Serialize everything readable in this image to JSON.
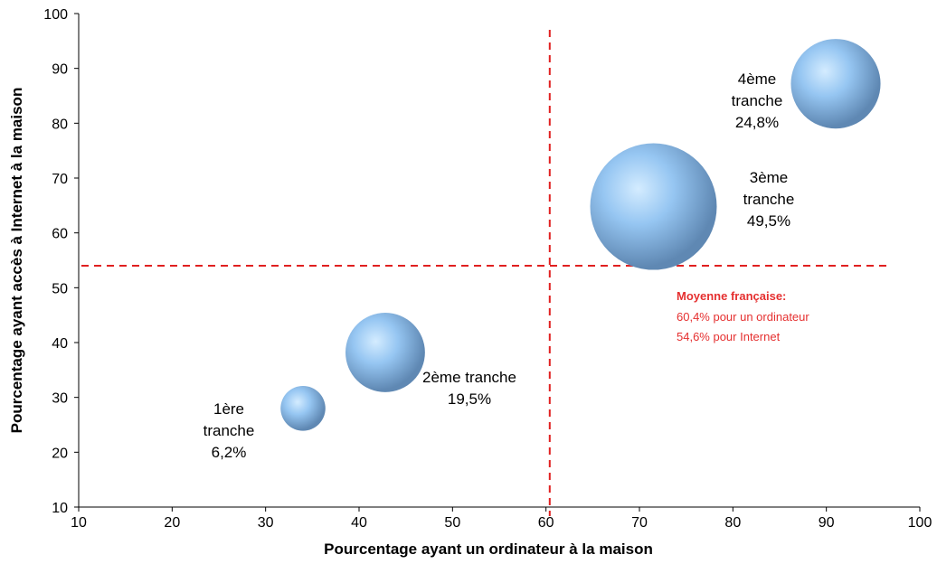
{
  "chart_data": {
    "type": "bubble",
    "xlabel": "Pourcentage ayant un ordinateur à la maison",
    "ylabel": "Pourcentage ayant accès à Internet à la maison",
    "xlim": [
      10,
      100
    ],
    "ylim": [
      10,
      100
    ],
    "xticks": [
      "10",
      "20",
      "30",
      "40",
      "50",
      "60",
      "70",
      "80",
      "90",
      "100"
    ],
    "yticks": [
      "10",
      "20",
      "30",
      "40",
      "50",
      "60",
      "70",
      "80",
      "90",
      "100"
    ],
    "grid": false,
    "bubbles": [
      {
        "x": 34,
        "y": 28,
        "size": 6.2,
        "label_lines": [
          "1ère",
          "tranche",
          "6,2%"
        ]
      },
      {
        "x": 42.8,
        "y": 38.2,
        "size": 19.5,
        "label_lines": [
          "2ème tranche",
          "19,5%"
        ]
      },
      {
        "x": 71.5,
        "y": 64.8,
        "size": 49.5,
        "label_lines": [
          "3ème",
          "tranche",
          "49,5%"
        ]
      },
      {
        "x": 91,
        "y": 87.2,
        "size": 24.8,
        "label_lines": [
          "4ème",
          "tranche",
          "24,8%"
        ]
      }
    ],
    "reference_lines": {
      "x": 60.4,
      "y": 54.6
    },
    "annotation": {
      "title": "Moyenne française:",
      "lines": [
        "60,4% pour un ordinateur",
        "54,6% pour Internet"
      ]
    },
    "colors": {
      "bubble": "#8ab8e8",
      "bubble_highlight": "#cde6ff",
      "bubble_edge": "#5f88b3",
      "reference": "#e02020",
      "axis": "#000000"
    }
  }
}
